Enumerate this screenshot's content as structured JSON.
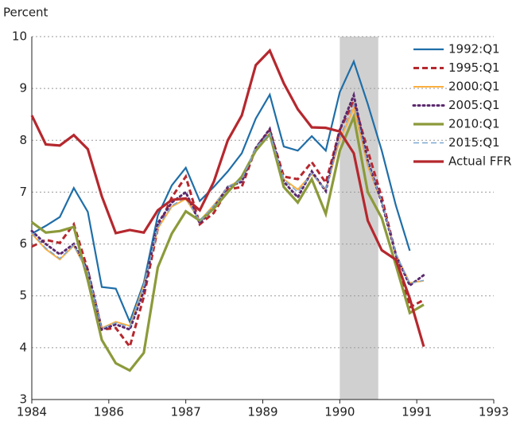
{
  "chart_data": {
    "type": "line",
    "y_label": "Percent",
    "x": [
      0,
      1,
      2,
      3,
      4,
      5,
      6,
      7,
      8,
      9,
      10,
      11,
      12,
      13,
      14,
      15,
      16,
      17,
      18,
      19,
      20,
      21,
      22,
      23,
      24,
      25,
      26,
      27,
      28
    ],
    "xlim": [
      0,
      33
    ],
    "xticks": [
      {
        "value": 0,
        "label": "1984"
      },
      {
        "value": 5.5,
        "label": "1986"
      },
      {
        "value": 11,
        "label": "1987"
      },
      {
        "value": 16.5,
        "label": "1989"
      },
      {
        "value": 22,
        "label": "1990"
      },
      {
        "value": 27.5,
        "label": "1991"
      },
      {
        "value": 33,
        "label": "1993"
      }
    ],
    "ylim": [
      3,
      10
    ],
    "yticks": [
      3,
      4,
      5,
      6,
      7,
      8,
      9,
      10
    ],
    "grid": true,
    "shade": [
      22,
      24.75
    ],
    "shade_color": "#d0d0d0",
    "legend": "upper right",
    "series": [
      {
        "name": "1992:Q1",
        "color": "#1f6ea8",
        "style": "solid",
        "width": 2.2,
        "values": [
          6.2,
          6.35,
          6.52,
          7.08,
          6.62,
          5.17,
          5.14,
          4.5,
          5.25,
          6.55,
          7.13,
          7.47,
          6.83,
          7.1,
          7.4,
          7.75,
          8.42,
          8.88,
          7.88,
          7.8,
          8.08,
          7.8,
          8.93,
          9.52,
          8.7,
          7.8,
          6.75,
          5.87,
          null
        ]
      },
      {
        "name": "1995:Q1",
        "color": "#b5282e",
        "style": "dashed",
        "width": 3,
        "values": [
          5.95,
          6.08,
          6.02,
          6.38,
          5.5,
          4.35,
          4.38,
          4.02,
          4.98,
          6.3,
          6.9,
          7.3,
          6.38,
          6.6,
          7.05,
          7.1,
          7.85,
          8.2,
          7.3,
          7.25,
          7.58,
          7.18,
          8.2,
          8.75,
          7.8,
          6.9,
          5.8,
          4.78,
          4.92
        ]
      },
      {
        "name": "2000:Q1",
        "color": "#fbb040",
        "style": "solid",
        "width": 2,
        "values": [
          6.2,
          5.9,
          5.7,
          5.97,
          5.45,
          4.38,
          4.5,
          4.42,
          5.2,
          6.3,
          6.72,
          6.87,
          6.45,
          6.75,
          7.1,
          7.25,
          7.85,
          8.12,
          7.25,
          7.05,
          7.35,
          7.05,
          8.0,
          8.62,
          7.5,
          6.8,
          5.8,
          5.25,
          5.29
        ]
      },
      {
        "name": "2005:Q1",
        "color": "#5b2a6e",
        "style": "dotted",
        "width": 3,
        "values": [
          6.25,
          6.0,
          5.8,
          6.0,
          5.5,
          4.35,
          4.45,
          4.35,
          5.1,
          6.4,
          6.8,
          7.0,
          6.4,
          6.7,
          7.1,
          7.2,
          7.85,
          8.22,
          7.2,
          6.9,
          7.4,
          7.02,
          8.2,
          8.87,
          7.6,
          6.8,
          5.8,
          5.2,
          5.4
        ]
      },
      {
        "name": "2010:Q1",
        "color": "#8c9a3a",
        "style": "solid",
        "width": 3.2,
        "values": [
          6.42,
          6.22,
          6.25,
          6.33,
          5.3,
          4.15,
          3.7,
          3.56,
          3.9,
          5.55,
          6.2,
          6.63,
          6.45,
          6.68,
          7.0,
          7.3,
          7.8,
          8.12,
          7.1,
          6.8,
          7.25,
          6.58,
          7.8,
          8.45,
          7.0,
          6.5,
          5.6,
          4.67,
          4.83
        ]
      },
      {
        "name": "2015:Q1",
        "color": "#7ba7d0",
        "style": "dashed",
        "width": 1.5,
        "values": [
          6.22,
          5.92,
          5.72,
          5.98,
          5.46,
          4.37,
          4.48,
          4.4,
          5.18,
          6.32,
          6.74,
          6.9,
          6.44,
          6.74,
          7.1,
          7.24,
          7.86,
          8.14,
          7.24,
          7.0,
          7.36,
          7.04,
          8.05,
          8.7,
          7.55,
          6.82,
          5.82,
          5.24,
          5.3
        ]
      },
      {
        "name": "Actual FFR",
        "color": "#b5282e",
        "style": "solid",
        "width": 3.2,
        "values": [
          8.48,
          7.92,
          7.9,
          8.1,
          7.83,
          6.92,
          6.21,
          6.27,
          6.22,
          6.65,
          6.85,
          6.88,
          6.65,
          7.2,
          8.0,
          8.48,
          9.45,
          9.73,
          9.1,
          8.6,
          8.25,
          8.24,
          8.17,
          7.75,
          6.45,
          5.88,
          5.7,
          4.95,
          4.02
        ]
      }
    ]
  }
}
